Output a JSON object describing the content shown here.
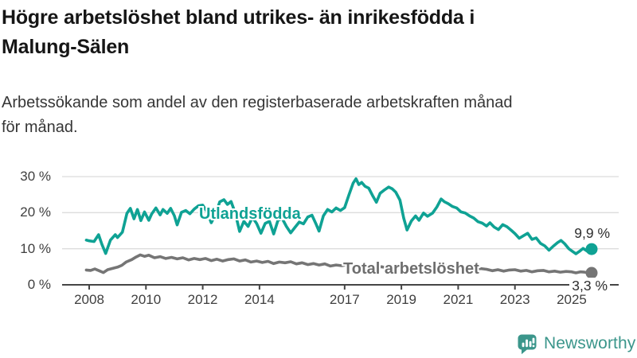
{
  "title": {
    "line1": "Högre arbetslöshet bland utrikes- än inrikesfödda i",
    "line2": "Malung-Sälen"
  },
  "subtitle": {
    "line1": "Arbetssökande som andel av den registerbaserade arbetskraften månad",
    "line2": "för månad."
  },
  "branding": {
    "logo_text": "Newsworthy",
    "logo_color": "#3b968b",
    "logo_icon": "bar-chart-speech-bubble-icon"
  },
  "colors": {
    "accent_teal": "#0fa294",
    "line_gray": "#757575",
    "grid": "#dcdcdc",
    "axis": "#454545",
    "tick_text": "#3f3f3f",
    "end_label_text": "#2e2e2e"
  },
  "chart_data": {
    "type": "line",
    "title": "Högre arbetslöshet bland utrikes- än inrikesfödda i Malung-Sälen",
    "subtitle": "Arbetssökande som andel av den registerbaserade arbetskraften månad för månad.",
    "unit": "%",
    "grid": true,
    "xlim": [
      2007.8,
      2025.9
    ],
    "ylim": [
      0,
      32
    ],
    "x_tick_years": [
      2008,
      2010,
      2012,
      2014,
      2017,
      2019,
      2021,
      2023,
      2025
    ],
    "x_tick_labels": [
      "2008",
      "2010",
      "2012",
      "2014",
      "2017",
      "2019",
      "2021",
      "2023",
      "2025"
    ],
    "y_tick_values": [
      0,
      10,
      20,
      30
    ],
    "y_tick_labels": [
      "0 %",
      "10 %",
      "20 %",
      "30 %"
    ],
    "series": [
      {
        "name": "Utlandsfödda",
        "color": "#0fa294",
        "end_label": "9,9 %",
        "end_value": 9.9,
        "points": [
          [
            2007.9,
            12.4
          ],
          [
            2008.0,
            12.2
          ],
          [
            2008.17,
            12.0
          ],
          [
            2008.33,
            13.9
          ],
          [
            2008.45,
            11.2
          ],
          [
            2008.58,
            8.7
          ],
          [
            2008.75,
            12.4
          ],
          [
            2008.92,
            13.9
          ],
          [
            2009.0,
            13.1
          ],
          [
            2009.17,
            14.6
          ],
          [
            2009.33,
            19.8
          ],
          [
            2009.45,
            21.2
          ],
          [
            2009.58,
            18.3
          ],
          [
            2009.7,
            20.9
          ],
          [
            2009.82,
            17.8
          ],
          [
            2009.95,
            20.2
          ],
          [
            2010.1,
            17.9
          ],
          [
            2010.2,
            19.6
          ],
          [
            2010.35,
            21.3
          ],
          [
            2010.5,
            19.4
          ],
          [
            2010.6,
            20.9
          ],
          [
            2010.75,
            19.8
          ],
          [
            2010.87,
            21.2
          ],
          [
            2011.0,
            19.2
          ],
          [
            2011.1,
            16.6
          ],
          [
            2011.25,
            20.1
          ],
          [
            2011.4,
            20.6
          ],
          [
            2011.55,
            19.7
          ],
          [
            2011.7,
            21.0
          ],
          [
            2011.85,
            21.9
          ],
          [
            2012.0,
            22.1
          ],
          [
            2012.15,
            20.3
          ],
          [
            2012.3,
            17.2
          ],
          [
            2012.45,
            19.5
          ],
          [
            2012.6,
            23.0
          ],
          [
            2012.75,
            23.6
          ],
          [
            2012.87,
            22.3
          ],
          [
            2013.0,
            23.1
          ],
          [
            2013.15,
            19.8
          ],
          [
            2013.3,
            14.8
          ],
          [
            2013.45,
            17.6
          ],
          [
            2013.6,
            16.2
          ],
          [
            2013.75,
            18.7
          ],
          [
            2013.9,
            17.0
          ],
          [
            2014.05,
            14.3
          ],
          [
            2014.2,
            17.0
          ],
          [
            2014.35,
            17.6
          ],
          [
            2014.5,
            14.1
          ],
          [
            2014.65,
            17.9
          ],
          [
            2014.8,
            18.4
          ],
          [
            2014.95,
            16.2
          ],
          [
            2015.1,
            14.4
          ],
          [
            2015.25,
            15.9
          ],
          [
            2015.4,
            17.4
          ],
          [
            2015.55,
            16.9
          ],
          [
            2015.7,
            18.8
          ],
          [
            2015.85,
            19.3
          ],
          [
            2016.0,
            16.7
          ],
          [
            2016.1,
            14.9
          ],
          [
            2016.25,
            19.1
          ],
          [
            2016.4,
            20.9
          ],
          [
            2016.55,
            20.2
          ],
          [
            2016.7,
            21.3
          ],
          [
            2016.85,
            20.6
          ],
          [
            2017.0,
            21.4
          ],
          [
            2017.15,
            24.9
          ],
          [
            2017.3,
            28.2
          ],
          [
            2017.4,
            29.4
          ],
          [
            2017.5,
            27.8
          ],
          [
            2017.6,
            28.4
          ],
          [
            2017.72,
            27.3
          ],
          [
            2017.85,
            26.8
          ],
          [
            2018.0,
            24.5
          ],
          [
            2018.12,
            22.9
          ],
          [
            2018.25,
            25.4
          ],
          [
            2018.4,
            26.3
          ],
          [
            2018.55,
            27.1
          ],
          [
            2018.68,
            26.6
          ],
          [
            2018.8,
            25.7
          ],
          [
            2018.95,
            23.5
          ],
          [
            2019.08,
            18.5
          ],
          [
            2019.2,
            15.2
          ],
          [
            2019.35,
            17.7
          ],
          [
            2019.5,
            19.1
          ],
          [
            2019.62,
            17.9
          ],
          [
            2019.78,
            19.9
          ],
          [
            2019.92,
            19.0
          ],
          [
            2020.1,
            19.9
          ],
          [
            2020.25,
            21.6
          ],
          [
            2020.4,
            23.8
          ],
          [
            2020.52,
            23.0
          ],
          [
            2020.65,
            22.5
          ],
          [
            2020.8,
            21.7
          ],
          [
            2020.95,
            21.3
          ],
          [
            2021.1,
            20.2
          ],
          [
            2021.25,
            19.9
          ],
          [
            2021.4,
            19.1
          ],
          [
            2021.55,
            18.5
          ],
          [
            2021.7,
            17.5
          ],
          [
            2021.85,
            17.1
          ],
          [
            2022.0,
            16.3
          ],
          [
            2022.12,
            17.2
          ],
          [
            2022.27,
            16.0
          ],
          [
            2022.42,
            15.3
          ],
          [
            2022.57,
            16.7
          ],
          [
            2022.72,
            16.1
          ],
          [
            2022.87,
            15.1
          ],
          [
            2023.0,
            14.2
          ],
          [
            2023.15,
            12.9
          ],
          [
            2023.3,
            13.6
          ],
          [
            2023.45,
            14.3
          ],
          [
            2023.6,
            12.6
          ],
          [
            2023.75,
            13.0
          ],
          [
            2023.9,
            11.5
          ],
          [
            2024.05,
            10.8
          ],
          [
            2024.2,
            9.6
          ],
          [
            2024.35,
            10.7
          ],
          [
            2024.5,
            11.7
          ],
          [
            2024.62,
            12.3
          ],
          [
            2024.75,
            11.4
          ],
          [
            2024.9,
            10.0
          ],
          [
            2025.02,
            9.3
          ],
          [
            2025.15,
            8.6
          ],
          [
            2025.28,
            9.3
          ],
          [
            2025.4,
            10.1
          ],
          [
            2025.55,
            9.3
          ],
          [
            2025.7,
            9.9
          ]
        ]
      },
      {
        "name": "Total arbetslöshet",
        "color": "#757575",
        "end_label": "3,3 %",
        "end_value": 3.3,
        "points": [
          [
            2007.9,
            4.1
          ],
          [
            2008.05,
            4.0
          ],
          [
            2008.2,
            4.4
          ],
          [
            2008.35,
            3.9
          ],
          [
            2008.5,
            3.4
          ],
          [
            2008.65,
            4.2
          ],
          [
            2008.85,
            4.6
          ],
          [
            2009.0,
            4.9
          ],
          [
            2009.15,
            5.4
          ],
          [
            2009.3,
            6.3
          ],
          [
            2009.5,
            7.0
          ],
          [
            2009.65,
            7.7
          ],
          [
            2009.8,
            8.3
          ],
          [
            2009.95,
            7.9
          ],
          [
            2010.1,
            8.2
          ],
          [
            2010.3,
            7.5
          ],
          [
            2010.5,
            7.8
          ],
          [
            2010.7,
            7.3
          ],
          [
            2010.9,
            7.6
          ],
          [
            2011.1,
            7.2
          ],
          [
            2011.3,
            7.5
          ],
          [
            2011.5,
            6.9
          ],
          [
            2011.7,
            7.3
          ],
          [
            2011.9,
            7.0
          ],
          [
            2012.1,
            7.3
          ],
          [
            2012.3,
            6.7
          ],
          [
            2012.5,
            7.1
          ],
          [
            2012.7,
            6.6
          ],
          [
            2012.9,
            7.0
          ],
          [
            2013.1,
            7.2
          ],
          [
            2013.3,
            6.6
          ],
          [
            2013.5,
            6.9
          ],
          [
            2013.7,
            6.3
          ],
          [
            2013.9,
            6.6
          ],
          [
            2014.1,
            6.2
          ],
          [
            2014.3,
            6.5
          ],
          [
            2014.5,
            5.9
          ],
          [
            2014.7,
            6.3
          ],
          [
            2014.9,
            6.1
          ],
          [
            2015.1,
            6.4
          ],
          [
            2015.3,
            5.8
          ],
          [
            2015.5,
            6.1
          ],
          [
            2015.7,
            5.6
          ],
          [
            2015.9,
            5.9
          ],
          [
            2016.1,
            5.5
          ],
          [
            2016.3,
            5.8
          ],
          [
            2016.5,
            5.2
          ],
          [
            2016.7,
            5.5
          ],
          [
            2016.9,
            5.3
          ],
          [
            2017.1,
            5.6
          ],
          [
            2017.3,
            5.0
          ],
          [
            2017.5,
            5.3
          ],
          [
            2017.7,
            4.9
          ],
          [
            2017.9,
            5.1
          ],
          [
            2018.1,
            4.8
          ],
          [
            2018.3,
            5.0
          ],
          [
            2018.5,
            4.6
          ],
          [
            2018.7,
            4.9
          ],
          [
            2018.9,
            4.7
          ],
          [
            2019.1,
            5.0
          ],
          [
            2019.3,
            4.5
          ],
          [
            2019.5,
            4.8
          ],
          [
            2019.7,
            4.4
          ],
          [
            2019.9,
            4.6
          ],
          [
            2020.1,
            4.8
          ],
          [
            2020.3,
            5.2
          ],
          [
            2020.45,
            5.6
          ],
          [
            2020.6,
            5.3
          ],
          [
            2020.8,
            5.1
          ],
          [
            2021.0,
            4.9
          ],
          [
            2021.2,
            4.6
          ],
          [
            2021.4,
            4.8
          ],
          [
            2021.6,
            4.3
          ],
          [
            2021.8,
            4.5
          ],
          [
            2022.0,
            4.3
          ],
          [
            2022.2,
            3.9
          ],
          [
            2022.4,
            4.2
          ],
          [
            2022.6,
            3.8
          ],
          [
            2022.8,
            4.1
          ],
          [
            2023.0,
            4.2
          ],
          [
            2023.2,
            3.8
          ],
          [
            2023.4,
            4.0
          ],
          [
            2023.6,
            3.6
          ],
          [
            2023.8,
            3.9
          ],
          [
            2024.0,
            4.0
          ],
          [
            2024.2,
            3.6
          ],
          [
            2024.4,
            3.8
          ],
          [
            2024.6,
            3.5
          ],
          [
            2024.8,
            3.7
          ],
          [
            2025.0,
            3.6
          ],
          [
            2025.15,
            3.3
          ],
          [
            2025.3,
            3.6
          ],
          [
            2025.45,
            3.5
          ],
          [
            2025.55,
            3.4
          ],
          [
            2025.7,
            3.3
          ]
        ]
      }
    ]
  }
}
